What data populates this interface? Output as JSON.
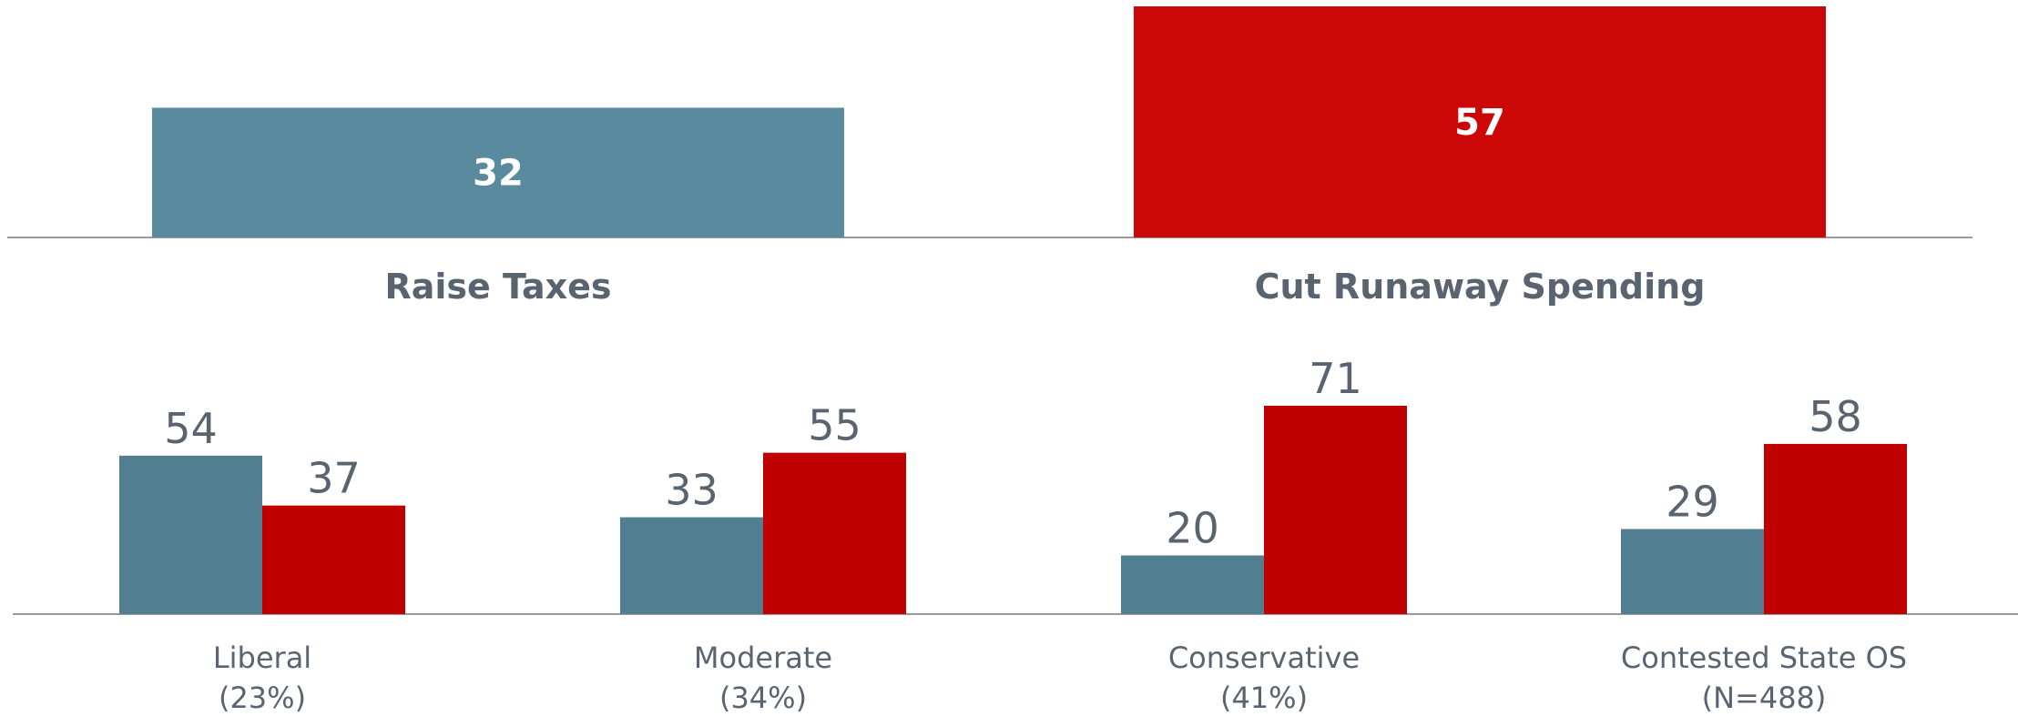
{
  "chart_data": [
    {
      "type": "bar",
      "categories": [
        "Raise Taxes",
        "Cut Runaway Spending"
      ],
      "values": [
        32,
        57
      ],
      "colors": [
        "#5a8a9e",
        "#cc0707"
      ],
      "ylim": [
        0,
        57
      ],
      "grid": false
    },
    {
      "type": "bar",
      "categories": [
        {
          "name": "Liberal",
          "sub": "(23%)"
        },
        {
          "name": "Moderate",
          "sub": "(34%)"
        },
        {
          "name": "Conservative",
          "sub": "(41%)"
        },
        {
          "name": "Contested State OS",
          "sub": "(N=488)"
        }
      ],
      "series": [
        {
          "values": [
            54,
            33,
            20,
            29
          ],
          "color": "#527e91"
        },
        {
          "values": [
            37,
            55,
            71,
            58
          ],
          "color": "#c00000"
        }
      ],
      "ylim": [
        0,
        71
      ],
      "grid": false,
      "legend": "none"
    }
  ]
}
